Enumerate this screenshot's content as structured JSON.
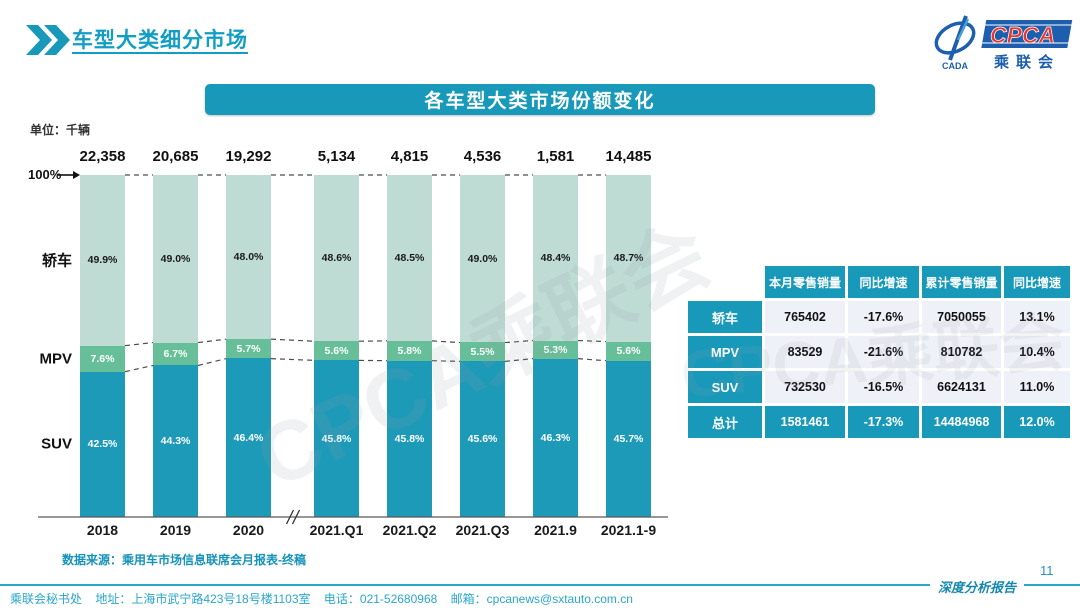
{
  "header": {
    "title": "车型大类细分市场"
  },
  "logo": {
    "cpca": "CPCA",
    "org": "乘联会",
    "sub": "CADA"
  },
  "banner": {
    "title": "各车型大类市场份额变化"
  },
  "chart_data": {
    "type": "bar",
    "stacked": true,
    "unit_label": "单位：千辆",
    "y_axis_top_label": "100%",
    "categories": [
      "2018",
      "2019",
      "2020",
      "2021.Q1",
      "2021.Q2",
      "2021.Q3",
      "2021.9",
      "2021.1-9"
    ],
    "totals": [
      "22,358",
      "20,685",
      "19,292",
      "5,134",
      "4,815",
      "4,536",
      "1,581",
      "14,485"
    ],
    "series": [
      {
        "name": "轿车",
        "color": "#bedcd4",
        "label_color": "#1a1a1a",
        "values": [
          49.9,
          49.0,
          48.0,
          48.6,
          48.5,
          49.0,
          48.4,
          48.7
        ]
      },
      {
        "name": "MPV",
        "color": "#66bf99",
        "label_color": "#ffffff",
        "values": [
          7.6,
          6.7,
          5.7,
          5.6,
          5.8,
          5.5,
          5.3,
          5.6
        ]
      },
      {
        "name": "SUV",
        "color": "#1e9ab9",
        "label_color": "#ffffff",
        "values": [
          42.5,
          44.3,
          46.4,
          45.8,
          45.8,
          45.6,
          46.3,
          45.7
        ]
      }
    ],
    "axis_break_after_index": 2,
    "ylim": [
      0,
      100
    ],
    "legend_position": "left"
  },
  "table": {
    "headers": [
      "",
      "本月零售销量",
      "同比增速",
      "累计零售销量",
      "同比增速"
    ],
    "rows": [
      {
        "label": "轿车",
        "cells": [
          "765402",
          "-17.6%",
          "7050055",
          "13.1%"
        ],
        "is_total": false
      },
      {
        "label": "MPV",
        "cells": [
          "83529",
          "-21.6%",
          "810782",
          "10.4%"
        ],
        "is_total": false
      },
      {
        "label": "SUV",
        "cells": [
          "732530",
          "-16.5%",
          "6624131",
          "11.0%"
        ],
        "is_total": false
      },
      {
        "label": "总计",
        "cells": [
          "1581461",
          "-17.3%",
          "14484968",
          "12.0%"
        ],
        "is_total": true
      }
    ]
  },
  "source": {
    "text": "数据来源：乘用车市场信息联席会月报表-终稿"
  },
  "watermark": {
    "text": "CPCA乘联会"
  },
  "footer": {
    "secretariat": "乘联会秘书处",
    "address": "地址：上海市武宁路423号18号楼1103室",
    "phone": "电话：021-52680968",
    "email": "邮箱：cpcanews@sxtauto.com.cn",
    "report_label": "深度分析报告",
    "page_number": "11"
  },
  "colors": {
    "accent": "#1899b9",
    "title": "#129ec4",
    "footer_text": "#2aa6cb",
    "row_bg": "#eef1f8"
  }
}
